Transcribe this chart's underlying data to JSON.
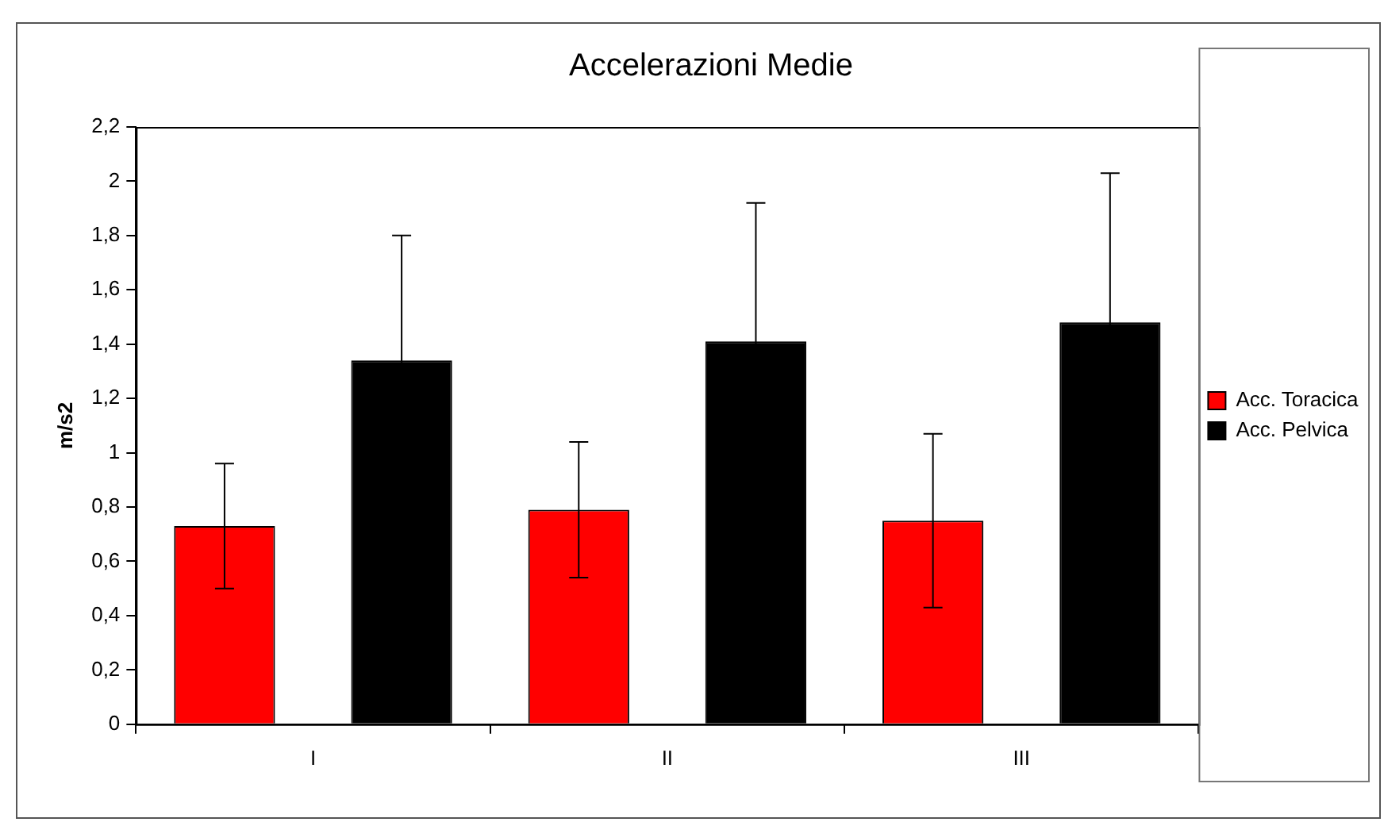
{
  "chart_data": {
    "type": "bar",
    "title": "Accelerazioni Medie",
    "ylabel": "m/s2",
    "categories": [
      "I",
      "II",
      "III"
    ],
    "series": [
      {
        "name": "Acc. Toracica",
        "color": "#ff0000",
        "values": [
          0.73,
          0.79,
          0.75
        ],
        "errors": [
          0.23,
          0.25,
          0.32
        ]
      },
      {
        "name": "Acc. Pelvica",
        "color": "#000000",
        "values": [
          1.34,
          1.41,
          1.48
        ],
        "errors": [
          0.46,
          0.51,
          0.55
        ]
      }
    ],
    "ylim": [
      0,
      2.2
    ],
    "yticks": [
      0,
      {
        "value": 0.2,
        "label": "0,2"
      },
      {
        "value": 0.4,
        "label": "0,4"
      },
      {
        "value": 0.6,
        "label": "0,6"
      },
      {
        "value": 0.8,
        "label": "0,8"
      },
      1,
      {
        "value": 1.2,
        "label": "1,2"
      },
      {
        "value": 1.4,
        "label": "1,4"
      },
      {
        "value": 1.6,
        "label": "1,6"
      },
      {
        "value": 1.8,
        "label": "1,8"
      },
      2,
      {
        "value": 2.2,
        "label": "2,2"
      }
    ],
    "grid": false,
    "legend": "right"
  }
}
